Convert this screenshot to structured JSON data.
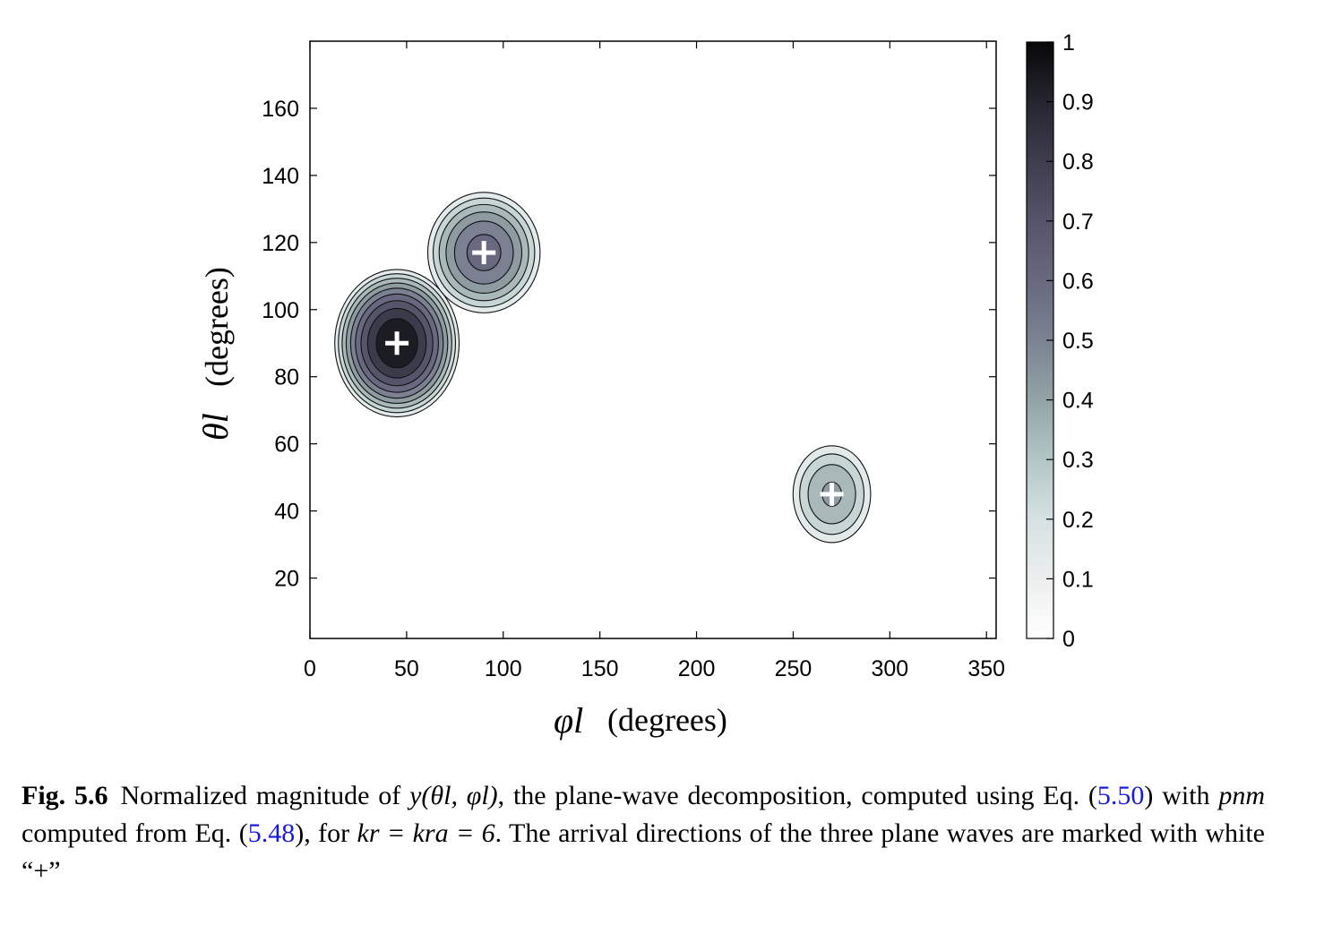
{
  "chart_data": {
    "type": "contour",
    "xlabel": "(degrees)",
    "xlabel_symbol": "φl",
    "ylabel": "(degrees)",
    "ylabel_symbol": "θl",
    "xlim": [
      0,
      355
    ],
    "ylim": [
      2,
      180
    ],
    "x_ticks": [
      0,
      50,
      100,
      150,
      200,
      250,
      300,
      350
    ],
    "y_ticks": [
      20,
      40,
      60,
      80,
      100,
      120,
      140,
      160
    ],
    "colorbar": {
      "ticks": [
        0,
        0.1,
        0.2,
        0.3,
        0.4,
        0.5,
        0.6,
        0.7,
        0.8,
        0.9,
        1
      ],
      "tick_labels": [
        "0",
        "0.1",
        "0.2",
        "0.3",
        "0.4",
        "0.5",
        "0.6",
        "0.7",
        "0.8",
        "0.9",
        "1"
      ],
      "colormap": "white-to-black with blue-grey tint"
    },
    "peaks": [
      {
        "phi": 45,
        "theta": 90,
        "magnitude": 1.0
      },
      {
        "phi": 90,
        "theta": 117,
        "magnitude": 0.65
      },
      {
        "phi": 270,
        "theta": 45,
        "magnitude": 0.42
      }
    ],
    "markers": [
      {
        "phi": 45,
        "theta": 90,
        "symbol": "+",
        "color": "#ffffff"
      },
      {
        "phi": 90,
        "theta": 117,
        "symbol": "+",
        "color": "#ffffff"
      },
      {
        "phi": 270,
        "theta": 45,
        "symbol": "+",
        "color": "#ffffff"
      }
    ],
    "grid": false
  },
  "caption": {
    "label": "Fig. 5.6",
    "text_1": "Normalized magnitude of ",
    "expr_1": "y(θl, φl)",
    "text_2": ", the plane-wave decomposition, computed using Eq. (",
    "ref_1": "5.50",
    "text_3": ") with ",
    "expr_2": "pnm",
    "text_4": " computed from Eq. (",
    "ref_2": "5.48",
    "text_5": "), for ",
    "expr_3": "kr = kra = 6",
    "text_6": ". The arrival directions of the three plane waves are marked with white “+”"
  }
}
